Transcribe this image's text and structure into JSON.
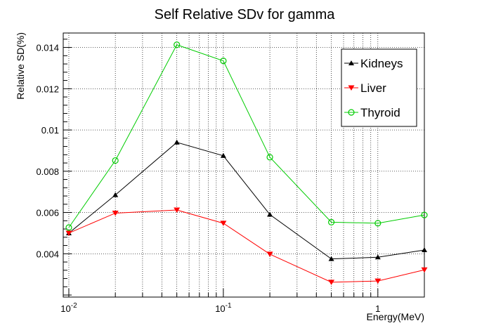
{
  "chart_data": {
    "type": "line",
    "title": "Self Relative SDv for gamma",
    "xlabel": "Energy(MeV)",
    "ylabel": "Relative SD(%)",
    "xscale": "log",
    "xlim": [
      0.0092,
      2.0
    ],
    "ylim": [
      0.0019,
      0.0147
    ],
    "grid": true,
    "legend_position": "top-right",
    "x": [
      0.01,
      0.02,
      0.05,
      0.1,
      0.2,
      0.5,
      1.0,
      2.0
    ],
    "x_ticks": [
      {
        "value": 0.01,
        "base": "10",
        "exp": "-2"
      },
      {
        "value": 0.1,
        "base": "10",
        "exp": "-1"
      },
      {
        "value": 1,
        "base": "1",
        "exp": ""
      }
    ],
    "y_ticks": [
      {
        "value": 0.004,
        "label": "0.004"
      },
      {
        "value": 0.006,
        "label": "0.006"
      },
      {
        "value": 0.008,
        "label": "0.008"
      },
      {
        "value": 0.01,
        "label": "0.01"
      },
      {
        "value": 0.012,
        "label": "0.012"
      },
      {
        "value": 0.014,
        "label": "0.014"
      }
    ],
    "series": [
      {
        "name": "Kidneys",
        "color": "#000000",
        "marker": "triangle-up",
        "values": [
          0.005,
          0.00685,
          0.0094,
          0.00875,
          0.0059,
          0.00375,
          0.00383,
          0.00418
        ]
      },
      {
        "name": "Liver",
        "color": "#ff0000",
        "marker": "triangle-down",
        "values": [
          0.005,
          0.00597,
          0.00612,
          0.00548,
          0.00398,
          0.00262,
          0.00268,
          0.00322
        ]
      },
      {
        "name": "Thyroid",
        "color": "#00cc00",
        "marker": "circle-open",
        "values": [
          0.00527,
          0.00852,
          0.01413,
          0.01335,
          0.00868,
          0.00553,
          0.00548,
          0.00588
        ]
      }
    ]
  }
}
